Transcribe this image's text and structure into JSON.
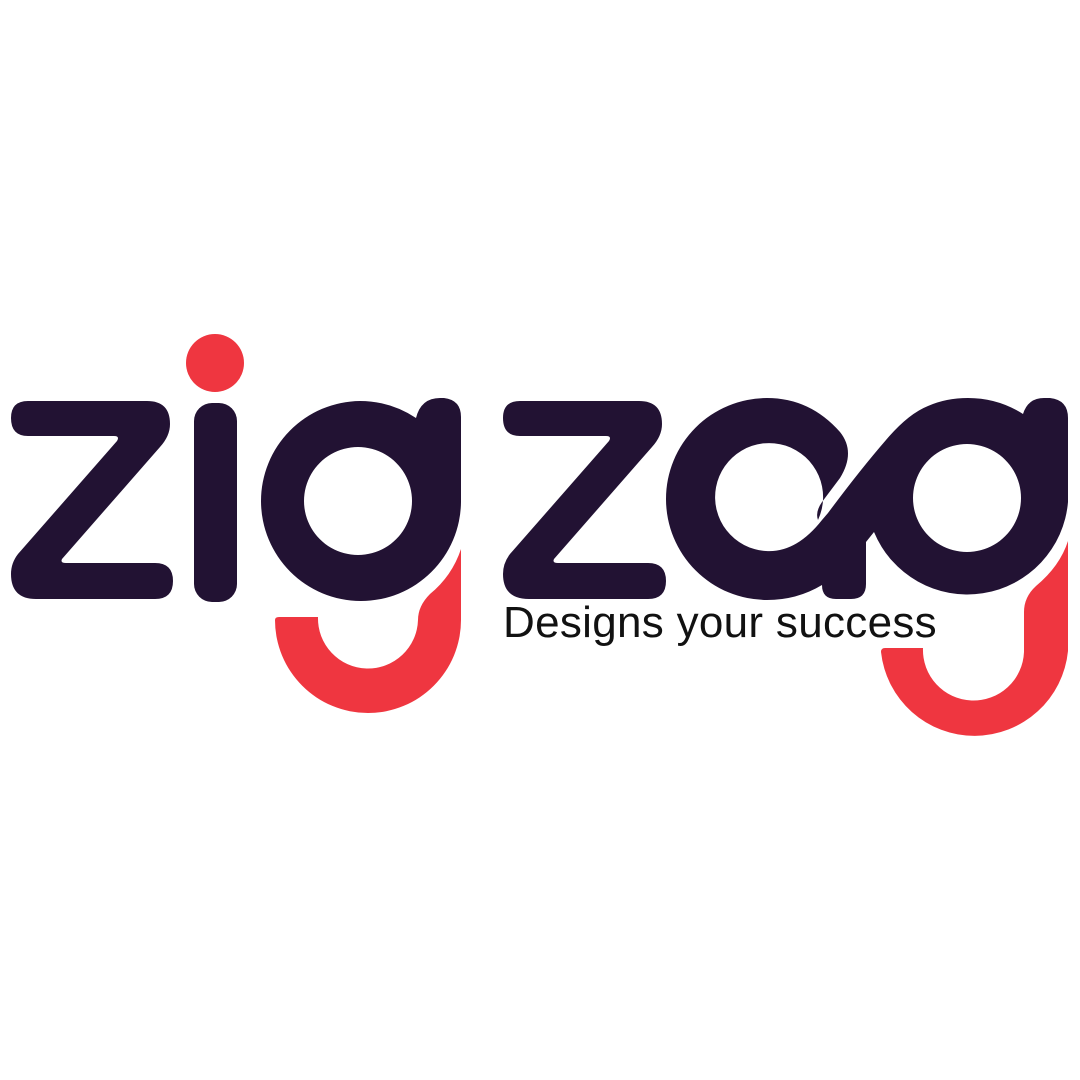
{
  "logo": {
    "wordmark": "zigzag",
    "tagline": "Designs your success",
    "colors": {
      "primary": "#221233",
      "accent": "#ef3640",
      "background": "#ffffff",
      "tagline": "#111111"
    }
  }
}
